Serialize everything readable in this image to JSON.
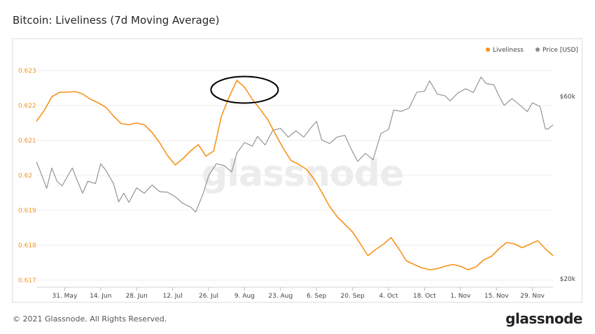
{
  "header": {
    "title": "Bitcoin: Liveliness (7d Moving Average)"
  },
  "footer": {
    "copyright": "© 2021 Glassnode. All Rights Reserved.",
    "logo_text": "glassnode"
  },
  "watermark": "glassnode",
  "colors": {
    "liveliness": "#f7931a",
    "price": "#8c8c8c",
    "grid": "#ececec",
    "annotation": "#000000"
  },
  "chart_data": {
    "type": "line",
    "title": "Bitcoin: Liveliness (7d Moving Average)",
    "legend_position": "top-right",
    "grid": true,
    "x_range": [
      "2021-05-20",
      "2021-12-07"
    ],
    "x_ticks": [
      {
        "date": "2021-05-31",
        "label": "31. May"
      },
      {
        "date": "2021-06-14",
        "label": "14. Jun"
      },
      {
        "date": "2021-06-28",
        "label": "28. Jun"
      },
      {
        "date": "2021-07-12",
        "label": "12. Jul"
      },
      {
        "date": "2021-07-26",
        "label": "26. Jul"
      },
      {
        "date": "2021-08-09",
        "label": "9. Aug"
      },
      {
        "date": "2021-08-23",
        "label": "23. Aug"
      },
      {
        "date": "2021-09-06",
        "label": "6. Sep"
      },
      {
        "date": "2021-09-20",
        "label": "20. Sep"
      },
      {
        "date": "2021-10-04",
        "label": "4. Oct"
      },
      {
        "date": "2021-10-18",
        "label": "18. Oct"
      },
      {
        "date": "2021-11-01",
        "label": "1. Nov"
      },
      {
        "date": "2021-11-15",
        "label": "15. Nov"
      },
      {
        "date": "2021-11-29",
        "label": "29. Nov"
      }
    ],
    "y_left": {
      "range": [
        0.6168,
        0.6235
      ],
      "ticks": [
        0.617,
        0.618,
        0.619,
        0.62,
        0.621,
        0.622,
        0.623
      ],
      "tick_labels": [
        "0.617",
        "0.618",
        "0.619",
        "0.62",
        "0.621",
        "0.622",
        "0.623"
      ]
    },
    "y_right": {
      "scale": "log",
      "range": [
        19000,
        78000
      ],
      "ticks": [
        20000,
        60000
      ],
      "tick_labels": [
        "$20k",
        "$60k"
      ]
    },
    "series": [
      {
        "name": "Liveliness",
        "axis": "left",
        "points": [
          [
            "2021-05-20",
            0.62155
          ],
          [
            "2021-05-23",
            0.62185
          ],
          [
            "2021-05-26",
            0.62225
          ],
          [
            "2021-05-29",
            0.62238
          ],
          [
            "2021-06-01",
            0.62238
          ],
          [
            "2021-06-04",
            0.6224
          ],
          [
            "2021-06-07",
            0.62233
          ],
          [
            "2021-06-10",
            0.62218
          ],
          [
            "2021-06-13",
            0.62208
          ],
          [
            "2021-06-16",
            0.62195
          ],
          [
            "2021-06-19",
            0.6217
          ],
          [
            "2021-06-22",
            0.62148
          ],
          [
            "2021-06-25",
            0.62145
          ],
          [
            "2021-06-28",
            0.6215
          ],
          [
            "2021-07-01",
            0.62145
          ],
          [
            "2021-07-04",
            0.62123
          ],
          [
            "2021-07-07",
            0.62093
          ],
          [
            "2021-07-10",
            0.62057
          ],
          [
            "2021-07-13",
            0.6203
          ],
          [
            "2021-07-16",
            0.62048
          ],
          [
            "2021-07-19",
            0.6207
          ],
          [
            "2021-07-22",
            0.62088
          ],
          [
            "2021-07-25",
            0.62055
          ],
          [
            "2021-07-28",
            0.6207
          ],
          [
            "2021-07-31",
            0.6217
          ],
          [
            "2021-08-03",
            0.62225
          ],
          [
            "2021-08-06",
            0.62272
          ],
          [
            "2021-08-09",
            0.62252
          ],
          [
            "2021-08-12",
            0.62218
          ],
          [
            "2021-08-15",
            0.6219
          ],
          [
            "2021-08-18",
            0.6216
          ],
          [
            "2021-08-21",
            0.62118
          ],
          [
            "2021-08-24",
            0.62078
          ],
          [
            "2021-08-27",
            0.62043
          ],
          [
            "2021-08-30",
            0.62032
          ],
          [
            "2021-09-02",
            0.62018
          ],
          [
            "2021-09-05",
            0.6199
          ],
          [
            "2021-09-08",
            0.61952
          ],
          [
            "2021-09-11",
            0.61912
          ],
          [
            "2021-09-14",
            0.61882
          ],
          [
            "2021-09-17",
            0.6186
          ],
          [
            "2021-09-20",
            0.61838
          ],
          [
            "2021-09-23",
            0.61805
          ],
          [
            "2021-09-26",
            0.6177
          ],
          [
            "2021-09-29",
            0.61788
          ],
          [
            "2021-10-02",
            0.61803
          ],
          [
            "2021-10-05",
            0.61822
          ],
          [
            "2021-10-08",
            0.6179
          ],
          [
            "2021-10-11",
            0.61755
          ],
          [
            "2021-10-14",
            0.61745
          ],
          [
            "2021-10-17",
            0.61735
          ],
          [
            "2021-10-20",
            0.6173
          ],
          [
            "2021-10-23",
            0.61733
          ],
          [
            "2021-10-26",
            0.6174
          ],
          [
            "2021-10-29",
            0.61745
          ],
          [
            "2021-11-01",
            0.6174
          ],
          [
            "2021-11-04",
            0.6173
          ],
          [
            "2021-11-07",
            0.61738
          ],
          [
            "2021-11-10",
            0.61758
          ],
          [
            "2021-11-13",
            0.61768
          ],
          [
            "2021-11-16",
            0.6179
          ],
          [
            "2021-11-19",
            0.61808
          ],
          [
            "2021-11-22",
            0.61804
          ],
          [
            "2021-11-25",
            0.61793
          ],
          [
            "2021-11-28",
            0.61803
          ],
          [
            "2021-12-01",
            0.61813
          ],
          [
            "2021-12-04",
            0.6179
          ],
          [
            "2021-12-07",
            0.6177
          ]
        ]
      },
      {
        "name": "Price [USD]",
        "axis": "right",
        "points": [
          [
            "2021-05-20",
            40500
          ],
          [
            "2021-05-22",
            37500
          ],
          [
            "2021-05-24",
            34500
          ],
          [
            "2021-05-26",
            39000
          ],
          [
            "2021-05-28",
            36000
          ],
          [
            "2021-05-30",
            35000
          ],
          [
            "2021-06-01",
            37000
          ],
          [
            "2021-06-03",
            39000
          ],
          [
            "2021-06-05",
            36000
          ],
          [
            "2021-06-07",
            33500
          ],
          [
            "2021-06-09",
            36000
          ],
          [
            "2021-06-12",
            35500
          ],
          [
            "2021-06-14",
            40000
          ],
          [
            "2021-06-16",
            38500
          ],
          [
            "2021-06-19",
            35500
          ],
          [
            "2021-06-21",
            31800
          ],
          [
            "2021-06-23",
            33500
          ],
          [
            "2021-06-25",
            31700
          ],
          [
            "2021-06-28",
            34600
          ],
          [
            "2021-07-01",
            33500
          ],
          [
            "2021-07-04",
            35200
          ],
          [
            "2021-07-07",
            33800
          ],
          [
            "2021-07-10",
            33700
          ],
          [
            "2021-07-13",
            32800
          ],
          [
            "2021-07-16",
            31500
          ],
          [
            "2021-07-19",
            30800
          ],
          [
            "2021-07-21",
            29900
          ],
          [
            "2021-07-24",
            33600
          ],
          [
            "2021-07-26",
            37200
          ],
          [
            "2021-07-29",
            40000
          ],
          [
            "2021-08-01",
            39600
          ],
          [
            "2021-08-04",
            38100
          ],
          [
            "2021-08-06",
            42700
          ],
          [
            "2021-08-09",
            45500
          ],
          [
            "2021-08-12",
            44500
          ],
          [
            "2021-08-14",
            47200
          ],
          [
            "2021-08-17",
            44800
          ],
          [
            "2021-08-20",
            49000
          ],
          [
            "2021-08-23",
            49500
          ],
          [
            "2021-08-26",
            47000
          ],
          [
            "2021-08-29",
            48800
          ],
          [
            "2021-09-01",
            47000
          ],
          [
            "2021-09-04",
            49900
          ],
          [
            "2021-09-06",
            51700
          ],
          [
            "2021-09-08",
            46200
          ],
          [
            "2021-09-11",
            45200
          ],
          [
            "2021-09-14",
            47000
          ],
          [
            "2021-09-17",
            47500
          ],
          [
            "2021-09-20",
            43000
          ],
          [
            "2021-09-22",
            40600
          ],
          [
            "2021-09-25",
            42600
          ],
          [
            "2021-09-28",
            41000
          ],
          [
            "2021-10-01",
            48000
          ],
          [
            "2021-10-04",
            49200
          ],
          [
            "2021-10-06",
            55300
          ],
          [
            "2021-10-09",
            54900
          ],
          [
            "2021-10-12",
            56000
          ],
          [
            "2021-10-15",
            61600
          ],
          [
            "2021-10-18",
            62000
          ],
          [
            "2021-10-20",
            66000
          ],
          [
            "2021-10-23",
            60900
          ],
          [
            "2021-10-26",
            60300
          ],
          [
            "2021-10-28",
            58500
          ],
          [
            "2021-10-31",
            61300
          ],
          [
            "2021-11-03",
            62900
          ],
          [
            "2021-11-06",
            61500
          ],
          [
            "2021-11-09",
            67500
          ],
          [
            "2021-11-11",
            64900
          ],
          [
            "2021-11-14",
            64400
          ],
          [
            "2021-11-16",
            60200
          ],
          [
            "2021-11-18",
            56900
          ],
          [
            "2021-11-21",
            59300
          ],
          [
            "2021-11-24",
            57100
          ],
          [
            "2021-11-27",
            54800
          ],
          [
            "2021-11-29",
            57800
          ],
          [
            "2021-12-02",
            56500
          ],
          [
            "2021-12-04",
            49400
          ],
          [
            "2021-12-05",
            49300
          ],
          [
            "2021-12-07",
            50600
          ]
        ]
      }
    ],
    "annotations": [
      {
        "type": "ellipse",
        "center_date": "2021-08-09",
        "center_value": 0.62245
      }
    ]
  }
}
